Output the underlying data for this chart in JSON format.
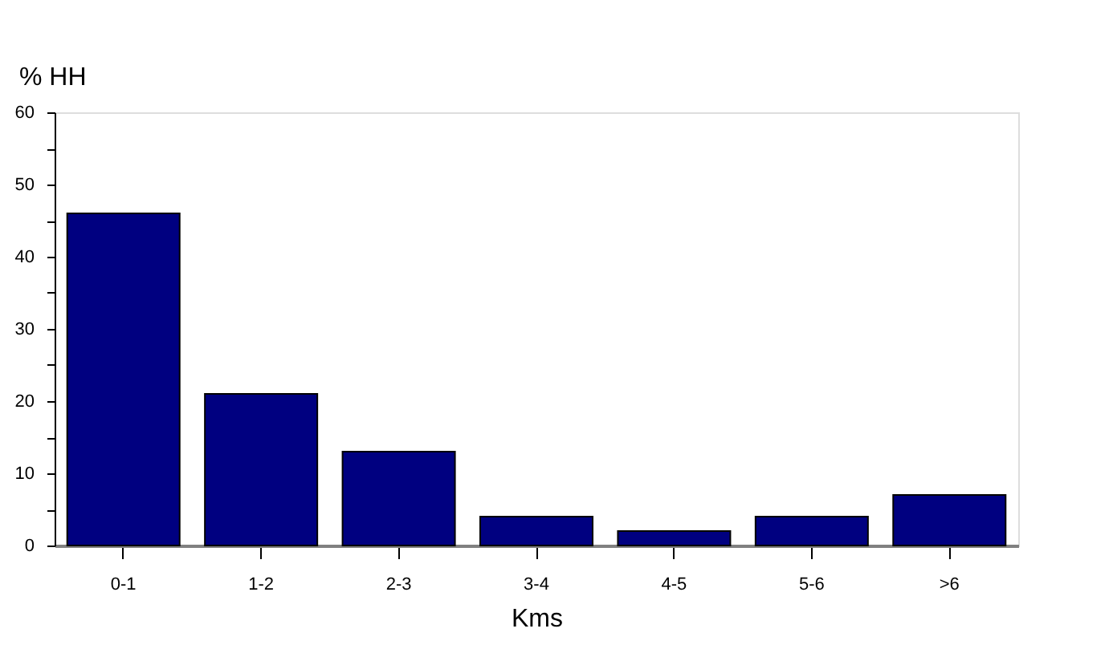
{
  "chart_data": {
    "type": "bar",
    "ylabel": "% HH",
    "xlabel": "Kms",
    "categories": [
      "0-1",
      "1-2",
      "2-3",
      "3-4",
      "4-5",
      "5-6",
      ">6"
    ],
    "values": [
      46,
      21,
      13,
      4,
      2,
      4,
      7
    ],
    "color": "#000080",
    "ylim": [
      0,
      60
    ],
    "yticks": [
      0,
      {
        "value": 5,
        "label": null
      },
      10,
      {
        "value": 15,
        "label": null
      },
      20,
      {
        "value": 25,
        "label": null
      },
      30,
      {
        "value": 35,
        "label": null
      },
      40,
      {
        "value": 45,
        "label": null
      },
      50,
      {
        "value": 55,
        "label": null
      },
      60
    ],
    "grid": false
  }
}
